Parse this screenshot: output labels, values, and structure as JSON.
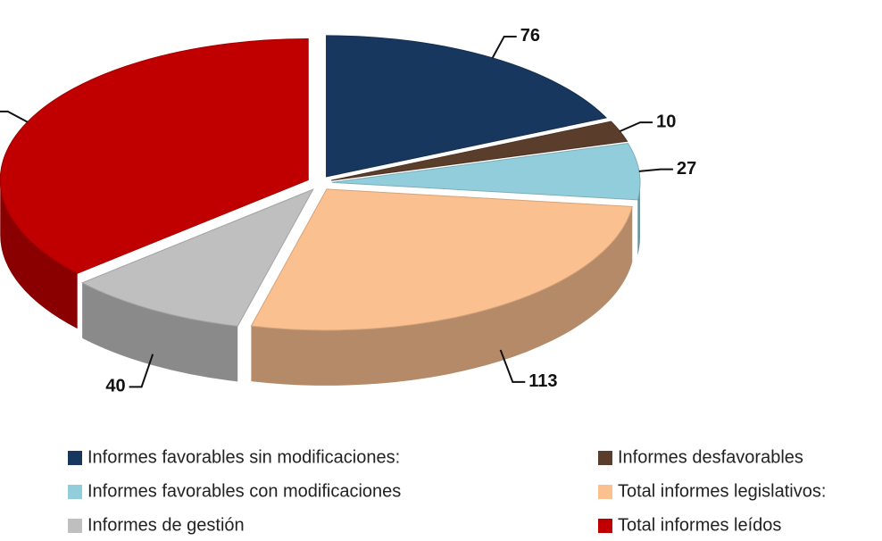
{
  "chart_data": {
    "type": "pie",
    "categories": [
      "Informes favorables  sin modificaciones:",
      "Informes desfavorables",
      "Informes favorables con modificaciones",
      "Total informes legislativos:",
      "Informes de gestión",
      "Total informes leídos"
    ],
    "values": [
      76,
      10,
      27,
      113,
      40,
      153
    ],
    "colors": [
      "#17375e",
      "#5a3d2b",
      "#92cddc",
      "#fac090",
      "#bfbfbf",
      "#c00000"
    ]
  }
}
